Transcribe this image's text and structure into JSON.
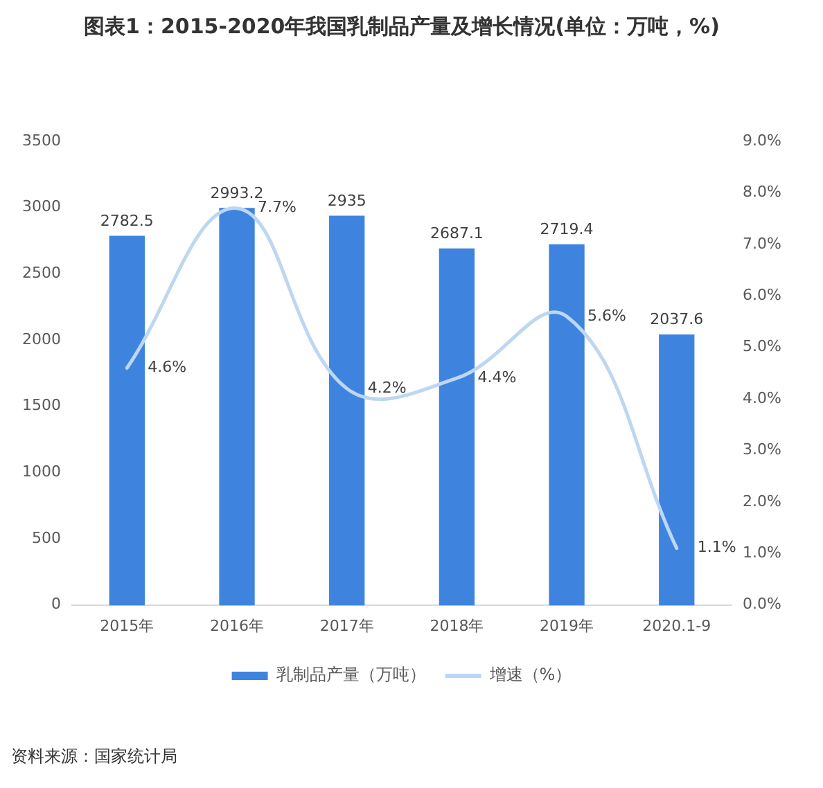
{
  "chart_data": {
    "type": "bar",
    "title": "图表1：2015-2020年我国乳制品产量及增长情况(单位：万吨，%)",
    "categories": [
      "2015年",
      "2016年",
      "2017年",
      "2018年",
      "2019年",
      "2020.1-9"
    ],
    "series": [
      {
        "name": "乳制品产量（万吨）",
        "color": "#3e84df",
        "values": [
          2782.5,
          2993.2,
          2935,
          2687.1,
          2719.4,
          2037.6
        ],
        "value_labels": [
          "2782.5",
          "2993.2",
          "2935",
          "2687.1",
          "2719.4",
          "2037.6"
        ]
      },
      {
        "name": "增速（%）",
        "type": "line",
        "axis": "y2",
        "color": "#bdd7f2",
        "values": [
          4.6,
          7.7,
          4.2,
          4.4,
          5.6,
          1.1
        ],
        "value_labels": [
          "4.6%",
          "7.7%",
          "4.2%",
          "4.4%",
          "5.6%",
          "1.1%"
        ]
      }
    ],
    "ylim": [
      0,
      3500
    ],
    "yticks": [
      0,
      500,
      1000,
      1500,
      2000,
      2500,
      3000,
      3500
    ],
    "y2lim": [
      0,
      9
    ],
    "y2ticks": [
      {
        "value": 0,
        "label": "0.0%"
      },
      {
        "value": 1,
        "label": "1.0%"
      },
      {
        "value": 2,
        "label": "2.0%"
      },
      {
        "value": 3,
        "label": "3.0%"
      },
      {
        "value": 4,
        "label": "4.0%"
      },
      {
        "value": 5,
        "label": "5.0%"
      },
      {
        "value": 6,
        "label": "6.0%"
      },
      {
        "value": 7,
        "label": "7.0%"
      },
      {
        "value": 8,
        "label": "8.0%"
      },
      {
        "value": 9,
        "label": "9.0%"
      }
    ],
    "grid": false,
    "legend": "bottom",
    "annotations": [
      "资料来源：国家统计局"
    ]
  }
}
